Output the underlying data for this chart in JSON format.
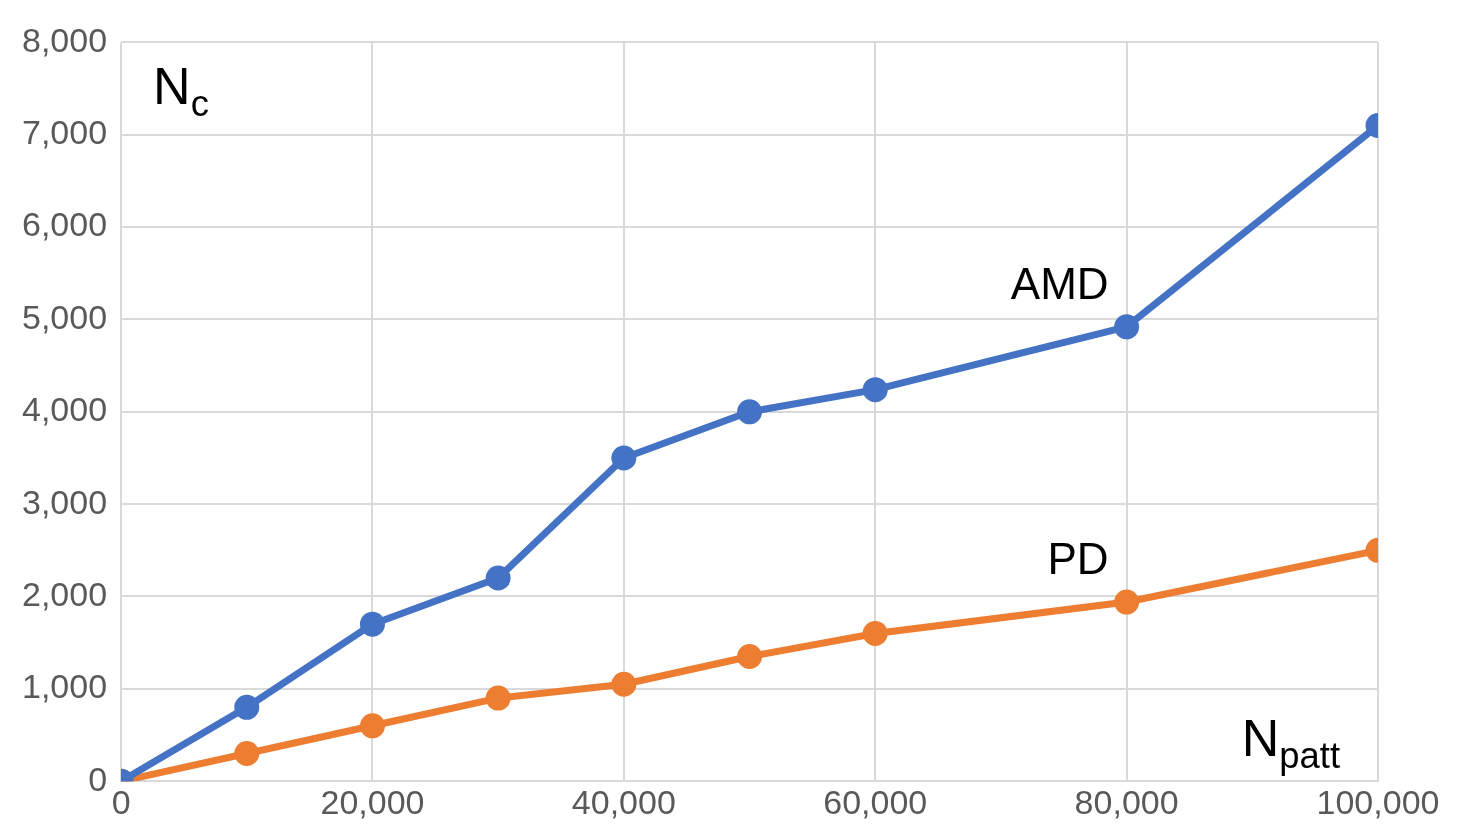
{
  "chart_data": {
    "type": "line",
    "xlabel": "N$_{patt}$",
    "ylabel": "N$_{c}$",
    "x": [
      0,
      10000,
      20000,
      30000,
      40000,
      50000,
      60000,
      80000,
      100000
    ],
    "series": [
      {
        "name": "AMD",
        "color": "#4472c4",
        "values": [
          0,
          800,
          1700,
          2200,
          3500,
          4000,
          4240,
          4920,
          7100
        ]
      },
      {
        "name": "PD",
        "color": "#ed7d31",
        "values": [
          0,
          300,
          600,
          900,
          1050,
          1350,
          1600,
          1940,
          2500
        ]
      }
    ],
    "xlim": [
      0,
      100000
    ],
    "xticks": [
      {
        "value": 0,
        "label": "0"
      },
      {
        "value": 20000,
        "label": "20,000"
      },
      {
        "value": 40000,
        "label": "40,000"
      },
      {
        "value": 60000,
        "label": "60,000"
      },
      {
        "value": 80000,
        "label": "80,000"
      },
      {
        "value": 100000,
        "label": "100,000"
      }
    ],
    "ylim": [
      0,
      8000
    ],
    "yticks": [
      {
        "value": 0,
        "label": "0"
      },
      {
        "value": 1000,
        "label": "1,000"
      },
      {
        "value": 2000,
        "label": "2,000"
      },
      {
        "value": 3000,
        "label": "3,000"
      },
      {
        "value": 4000,
        "label": "4,000"
      },
      {
        "value": 5000,
        "label": "5,000"
      },
      {
        "value": 6000,
        "label": "6,000"
      },
      {
        "value": 7000,
        "label": "7,000"
      },
      {
        "value": 8000,
        "label": "8,000"
      }
    ],
    "grid": true,
    "legend": false,
    "marker": "circle",
    "line_style": "solid"
  }
}
